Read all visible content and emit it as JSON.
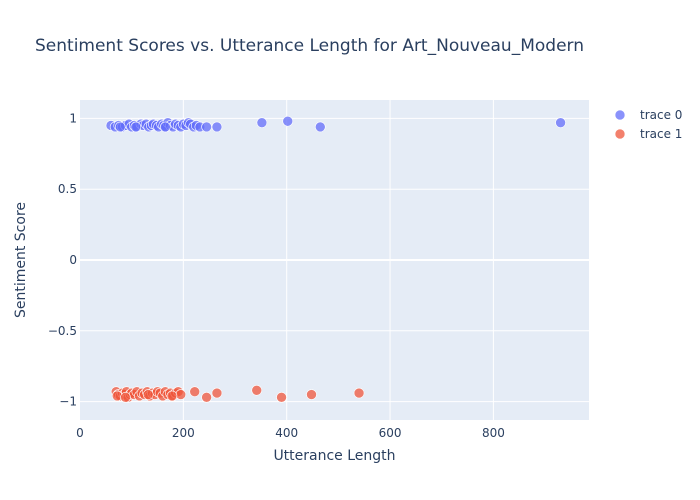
{
  "chart_data": {
    "type": "scatter",
    "title": "Sentiment Scores vs. Utterance Length for Art_Nouveau_Modern",
    "xlabel": "Utterance Length",
    "ylabel": "Sentiment Score",
    "xlim": [
      0,
      985
    ],
    "ylim": [
      -1.13,
      1.13
    ],
    "x_ticks": [
      0,
      200,
      400,
      600,
      800
    ],
    "x_tick_labels": [
      "0",
      "200",
      "400",
      "600",
      "800"
    ],
    "y_ticks": [
      1,
      0.5,
      0,
      -0.5,
      -1
    ],
    "y_tick_labels": [
      "1",
      "0.5",
      "0",
      "−0.5",
      "−1"
    ],
    "grid": true,
    "legend_position": "top-right",
    "series": [
      {
        "name": "trace 0",
        "color": "#636efa",
        "points": [
          [
            60,
            0.95
          ],
          [
            68,
            0.94
          ],
          [
            75,
            0.95
          ],
          [
            82,
            0.94
          ],
          [
            88,
            0.95
          ],
          [
            95,
            0.96
          ],
          [
            100,
            0.94
          ],
          [
            105,
            0.95
          ],
          [
            110,
            0.94
          ],
          [
            118,
            0.96
          ],
          [
            122,
            0.95
          ],
          [
            128,
            0.96
          ],
          [
            133,
            0.94
          ],
          [
            138,
            0.95
          ],
          [
            142,
            0.96
          ],
          [
            148,
            0.95
          ],
          [
            152,
            0.94
          ],
          [
            158,
            0.96
          ],
          [
            162,
            0.95
          ],
          [
            166,
            0.94
          ],
          [
            170,
            0.97
          ],
          [
            175,
            0.95
          ],
          [
            180,
            0.94
          ],
          [
            185,
            0.96
          ],
          [
            190,
            0.95
          ],
          [
            195,
            0.94
          ],
          [
            200,
            0.96
          ],
          [
            205,
            0.95
          ],
          [
            210,
            0.97
          ],
          [
            214,
            0.96
          ],
          [
            220,
            0.94
          ],
          [
            225,
            0.95
          ],
          [
            232,
            0.94
          ],
          [
            245,
            0.94
          ],
          [
            265,
            0.94
          ],
          [
            352,
            0.97
          ],
          [
            402,
            0.98
          ],
          [
            465,
            0.94
          ],
          [
            930,
            0.97
          ],
          [
            78,
            0.94
          ],
          [
            108,
            0.94
          ],
          [
            165,
            0.94
          ]
        ]
      },
      {
        "name": "trace 1",
        "color": "#ef553b",
        "points": [
          [
            70,
            -0.93
          ],
          [
            74,
            -0.95
          ],
          [
            78,
            -0.96
          ],
          [
            82,
            -0.94
          ],
          [
            86,
            -0.95
          ],
          [
            90,
            -0.93
          ],
          [
            93,
            -0.97
          ],
          [
            97,
            -0.95
          ],
          [
            100,
            -0.94
          ],
          [
            105,
            -0.95
          ],
          [
            110,
            -0.93
          ],
          [
            115,
            -0.96
          ],
          [
            120,
            -0.94
          ],
          [
            125,
            -0.95
          ],
          [
            130,
            -0.93
          ],
          [
            135,
            -0.96
          ],
          [
            140,
            -0.94
          ],
          [
            145,
            -0.95
          ],
          [
            150,
            -0.93
          ],
          [
            155,
            -0.94
          ],
          [
            160,
            -0.96
          ],
          [
            165,
            -0.93
          ],
          [
            170,
            -0.95
          ],
          [
            175,
            -0.94
          ],
          [
            180,
            -0.96
          ],
          [
            185,
            -0.94
          ],
          [
            190,
            -0.93
          ],
          [
            195,
            -0.95
          ],
          [
            222,
            -0.93
          ],
          [
            245,
            -0.97
          ],
          [
            265,
            -0.94
          ],
          [
            342,
            -0.92
          ],
          [
            390,
            -0.97
          ],
          [
            448,
            -0.95
          ],
          [
            540,
            -0.94
          ],
          [
            72,
            -0.96
          ],
          [
            88,
            -0.97
          ],
          [
            132,
            -0.95
          ],
          [
            178,
            -0.96
          ]
        ]
      }
    ]
  }
}
